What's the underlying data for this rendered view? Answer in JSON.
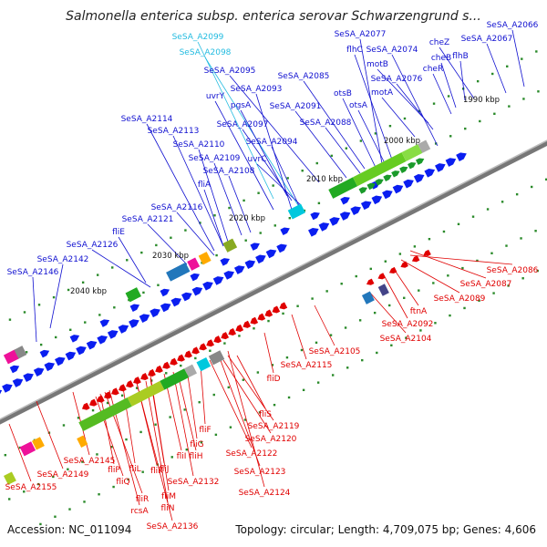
{
  "title": "Salmonella enterica subsp. enterica serovar Schwarzengrund s...",
  "footer": {
    "accession": "Accession: NC_011094",
    "summary": "Topology: circular; Length: 4,709,075 bp; Genes: 4,606"
  },
  "colors": {
    "forward_label": "#1010d0",
    "reverse_label": "#e00000",
    "highlight_label": "#22bbe0",
    "forward_gene": "#0a1ef0",
    "reverse_gene": "#e00000",
    "kbp_tick": "#2a8a2a",
    "backbone": "#777777"
  },
  "kbp_labels": [
    "1990 kbp",
    "2000 kbp",
    "2010 kbp",
    "2020 kbp",
    "2030 kbp",
    "2040 kbp"
  ],
  "labels_top": [
    "SeSA_A2099",
    "SeSA_A2098",
    "SeSA_A2077",
    "flhC",
    "SeSA_A2074",
    "cheZ",
    "SeSA_A2067",
    "SeSA_A2066",
    "SeSA_A2095",
    "motB",
    "cheB",
    "flhB",
    "SeSA_A2085",
    "SeSA_A2093",
    "uvrY",
    "cheR",
    "SeSA_A2076",
    "motA",
    "pgsA",
    "SeSA_A2091",
    "otsB",
    "otsA",
    "SeSA_A2114",
    "SeSA_A2097",
    "SeSA_A2088",
    "SeSA_A2113",
    "SeSA_A2094",
    "uvrC",
    "SeSA_A2110",
    "SeSA_A2109",
    "SeSA_A2108",
    "fliA",
    "SeSA_A2116",
    "SeSA_A2121",
    "fliE",
    "SeSA_A2126",
    "SeSA_A2142",
    "SeSA_A2146"
  ],
  "labels_bottom": [
    "SeSA_A2086",
    "SeSA_A2087",
    "SeSA_A2089",
    "ftnA",
    "SeSA_A2092",
    "SeSA_A2104",
    "SeSA_A2105",
    "SeSA_A2115",
    "fliD",
    "fliS",
    "SeSA_A2119",
    "SeSA_A2120",
    "fliF",
    "fliG",
    "fliH",
    "SeSA_A2122",
    "SeSA_A2123",
    "SeSA_A2124",
    "fliI",
    "fliJ",
    "fliK",
    "fliL",
    "SeSA_A2132",
    "fliM",
    "fliN",
    "fliP",
    "fliQ",
    "fliR",
    "rcsA",
    "SeSA_A2136",
    "SeSA_A2145",
    "SeSA_A2149",
    "SeSA_A2155"
  ]
}
